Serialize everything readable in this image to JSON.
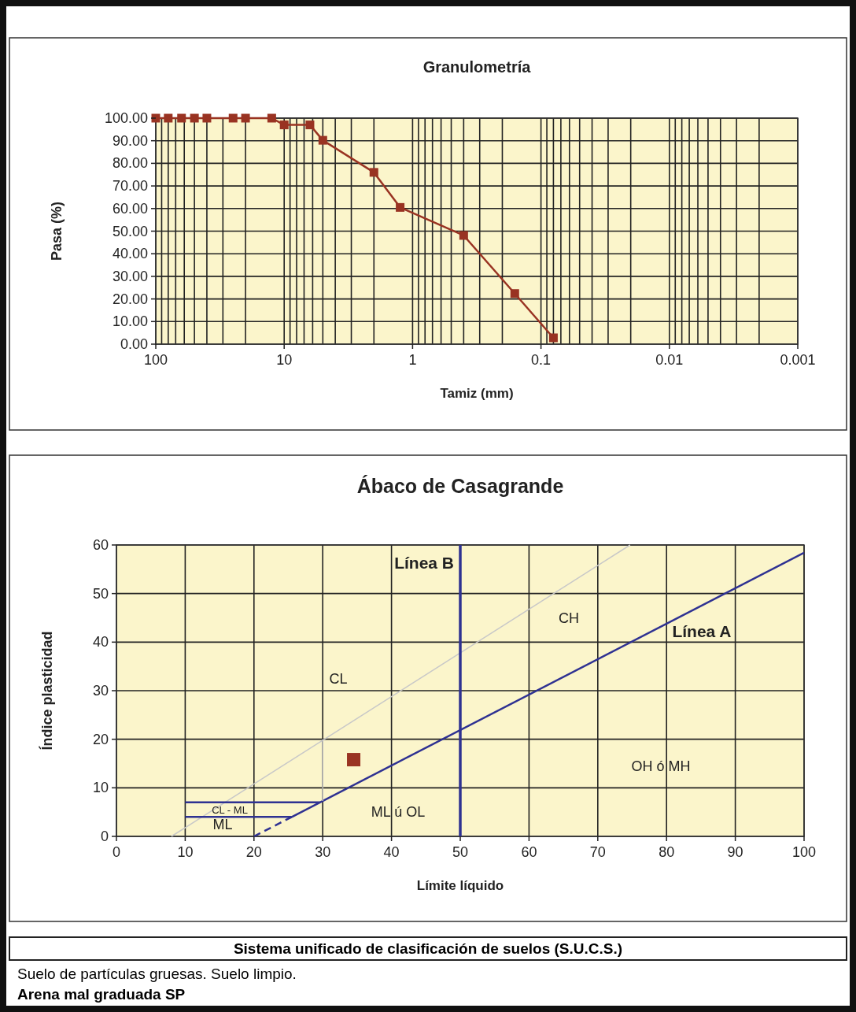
{
  "chart_data": [
    {
      "type": "line",
      "title": "Granulometría",
      "xlabel": "Tamiz (mm)",
      "ylabel": "Pasa (%)",
      "log": "x",
      "xlim": [
        100,
        0.001
      ],
      "ylim": [
        0,
        100
      ],
      "xticks": [
        100,
        {
          "value": 90,
          "label": null
        },
        {
          "value": 80,
          "label": null
        },
        {
          "value": 70,
          "label": null
        },
        {
          "value": 60,
          "label": null
        },
        {
          "value": 50,
          "label": null
        },
        {
          "value": 40,
          "label": null
        },
        {
          "value": 30,
          "label": null
        },
        {
          "value": 20,
          "label": null
        },
        10,
        {
          "value": 9,
          "label": null
        },
        {
          "value": 8,
          "label": null
        },
        {
          "value": 7,
          "label": null
        },
        {
          "value": 6,
          "label": null
        },
        {
          "value": 5,
          "label": null
        },
        {
          "value": 4,
          "label": null
        },
        {
          "value": 3,
          "label": null
        },
        {
          "value": 2,
          "label": null
        },
        1,
        {
          "value": 0.9,
          "label": null
        },
        {
          "value": 0.8,
          "label": null
        },
        {
          "value": 0.7,
          "label": null
        },
        {
          "value": 0.6,
          "label": null
        },
        {
          "value": 0.5,
          "label": null
        },
        {
          "value": 0.4,
          "label": null
        },
        {
          "value": 0.3,
          "label": null
        },
        {
          "value": 0.2,
          "label": null
        },
        0.1,
        {
          "value": 0.09,
          "label": null
        },
        {
          "value": 0.08,
          "label": null
        },
        {
          "value": 0.07,
          "label": null
        },
        {
          "value": 0.06,
          "label": null
        },
        {
          "value": 0.05,
          "label": null
        },
        {
          "value": 0.04,
          "label": null
        },
        {
          "value": 0.03,
          "label": null
        },
        {
          "value": 0.02,
          "label": null
        },
        0.01,
        {
          "value": 0.009,
          "label": null
        },
        {
          "value": 0.008,
          "label": null
        },
        {
          "value": 0.007,
          "label": null
        },
        {
          "value": 0.006,
          "label": null
        },
        {
          "value": 0.005,
          "label": null
        },
        {
          "value": 0.004,
          "label": null
        },
        {
          "value": 0.003,
          "label": null
        },
        {
          "value": 0.002,
          "label": null
        },
        0.001
      ],
      "yticks": [
        {
          "value": 0,
          "label": "0.00"
        },
        {
          "value": 10,
          "label": "10.00"
        },
        {
          "value": 20,
          "label": "20.00"
        },
        {
          "value": 30,
          "label": "30.00"
        },
        {
          "value": 40,
          "label": "40.00"
        },
        {
          "value": 50,
          "label": "50.00"
        },
        {
          "value": 60,
          "label": "60.00"
        },
        {
          "value": 70,
          "label": "70.00"
        },
        {
          "value": 80,
          "label": "80.00"
        },
        {
          "value": 90,
          "label": "90.00"
        },
        {
          "value": 100,
          "label": "100.00"
        }
      ],
      "grid": true,
      "marker": "square",
      "series": [
        {
          "color": "#993322",
          "x": [
            100,
            80,
            63,
            50,
            40,
            25,
            20,
            12.5,
            10,
            6.3,
            5,
            2,
            1.25,
            0.4,
            0.16,
            0.08
          ],
          "values": [
            100,
            100,
            100,
            100,
            100,
            100,
            100,
            100,
            97,
            97,
            90.2,
            76,
            60.5,
            48.1,
            22.4,
            2.8
          ]
        }
      ]
    },
    {
      "type": "line",
      "title": "Ábaco  de Casagrande",
      "xlabel": "Límite líquido",
      "ylabel": "Índice plasticidad",
      "xlim": [
        0,
        100
      ],
      "ylim": [
        0,
        60
      ],
      "xticks": [
        0,
        10,
        20,
        30,
        40,
        50,
        60,
        70,
        80,
        90,
        100
      ],
      "yticks": [
        0,
        10,
        20,
        30,
        40,
        50,
        60
      ],
      "grid": true,
      "series": [
        {
          "color": "#2e3192",
          "x": [
            25.5,
            100
          ],
          "values": [
            4,
            58.4
          ],
          "marker": "none",
          "line_style": "solid"
        },
        {
          "color": "#2e3192",
          "x": [
            20,
            25.5
          ],
          "values": [
            0,
            4
          ],
          "marker": "none",
          "line_style": "dashed"
        },
        {
          "color": "#c8c8c8",
          "x": [
            8,
            74.7
          ],
          "values": [
            0,
            60
          ],
          "marker": "none",
          "line_style": "solid"
        },
        {
          "color": "#2e3192",
          "x": [
            10,
            29.6
          ],
          "values": [
            7,
            7
          ],
          "marker": "none",
          "line_style": "solid"
        },
        {
          "color": "#2e3192",
          "x": [
            10,
            25.5
          ],
          "values": [
            4,
            4
          ],
          "marker": "none",
          "line_style": "solid"
        },
        {
          "color": "#c8c8c8",
          "x": [
            30,
            30
          ],
          "values": [
            7.3,
            20
          ],
          "marker": "none",
          "line_style": "solid"
        },
        {
          "type": "scatter",
          "color": "#993322",
          "x": [
            34.5
          ],
          "values": [
            15.8
          ],
          "marker": "square"
        }
      ],
      "ref_lines": [
        {
          "axis": "x",
          "value": 50,
          "label": "Línea B",
          "color": "#2e3192"
        }
      ],
      "annotations": [
        "CH",
        "Línea A",
        "CL",
        "CL - ML",
        "ML",
        "ML ú OL",
        "OH ó MH"
      ]
    },
    {
      "type": "other",
      "title": "Sistema unificado de clasificación de suelos (S.U.C.S.)",
      "annotations": [
        "Suelo de partículas gruesas. Suelo limpio.",
        "Arena mal graduada SP"
      ]
    }
  ]
}
